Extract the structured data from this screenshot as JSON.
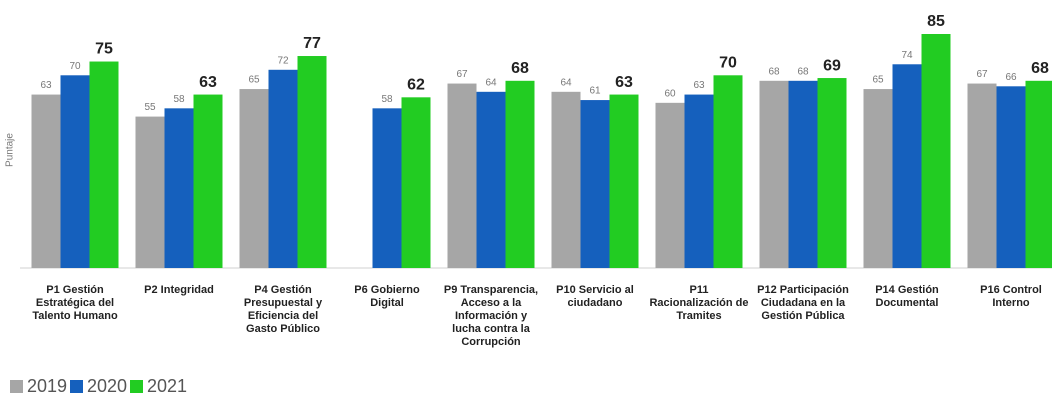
{
  "chart_data": {
    "type": "bar",
    "y_label": "Puntaje",
    "categories": [
      "P1 Gestión Estratégica del Talento Humano",
      "P2 Integridad",
      "P4 Gestión Presupuestal y Eficiencia del Gasto Público",
      "P6 Gobierno Digital",
      "P9 Transparencia, Acceso a la Información y lucha contra la Corrupción",
      "P10 Servicio al ciudadano",
      "P11 Racionalización de Tramites",
      "P12 Participación Ciudadana en la Gestión Pública",
      "P14 Gestión Documental",
      "P16 Control Interno"
    ],
    "series": [
      {
        "name": "2019",
        "color": "#a6a6a6",
        "values": [
          63,
          55,
          65,
          null,
          67,
          64,
          60,
          68,
          65,
          67
        ]
      },
      {
        "name": "2020",
        "color": "#1560bd",
        "values": [
          70,
          58,
          72,
          58,
          64,
          61,
          63,
          68,
          74,
          66
        ]
      },
      {
        "name": "2021",
        "color": "#22cc22",
        "values": [
          75,
          63,
          77,
          62,
          68,
          63,
          70,
          69,
          85,
          68
        ]
      }
    ],
    "ylim": [
      0,
      85
    ],
    "legend": "bottom-left"
  }
}
